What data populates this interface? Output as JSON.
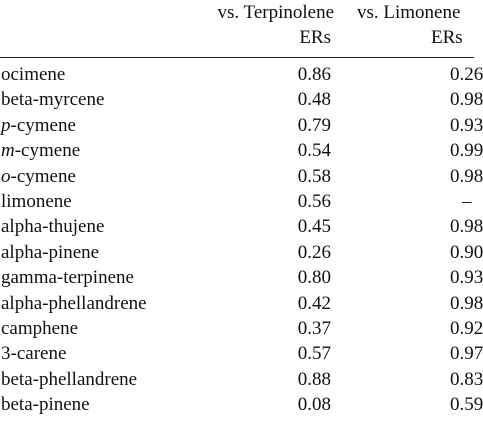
{
  "header": {
    "col1_line1": "vs. Terpinolene",
    "col1_line2": "ERs",
    "col2_line1": "vs. Limonene",
    "col2_line2": "ERs"
  },
  "rows": [
    {
      "prefix": "",
      "name": "ocimene",
      "terpinolene": "0.86",
      "limonene": "0.26"
    },
    {
      "prefix": "",
      "name": "beta-myrcene",
      "terpinolene": "0.48",
      "limonene": "0.98"
    },
    {
      "prefix": "p",
      "name": "-cymene",
      "terpinolene": "0.79",
      "limonene": "0.93"
    },
    {
      "prefix": "m",
      "name": "-cymene",
      "terpinolene": "0.54",
      "limonene": "0.99"
    },
    {
      "prefix": "o",
      "name": "-cymene",
      "terpinolene": "0.58",
      "limonene": "0.98"
    },
    {
      "prefix": "",
      "name": "limonene",
      "terpinolene": "0.56",
      "limonene": "–"
    },
    {
      "prefix": "",
      "name": "alpha-thujene",
      "terpinolene": "0.45",
      "limonene": "0.98"
    },
    {
      "prefix": "",
      "name": "alpha-pinene",
      "terpinolene": "0.26",
      "limonene": "0.90"
    },
    {
      "prefix": "",
      "name": "gamma-terpinene",
      "terpinolene": "0.80",
      "limonene": "0.93"
    },
    {
      "prefix": "",
      "name": "alpha-phellandrene",
      "terpinolene": "0.42",
      "limonene": "0.98"
    },
    {
      "prefix": "",
      "name": "camphene",
      "terpinolene": "0.37",
      "limonene": "0.92"
    },
    {
      "prefix": "",
      "name": "3-carene",
      "terpinolene": "0.57",
      "limonene": "0.97"
    },
    {
      "prefix": "",
      "name": "beta-phellandrene",
      "terpinolene": "0.88",
      "limonene": "0.83"
    },
    {
      "prefix": "",
      "name": "beta-pinene",
      "terpinolene": "0.08",
      "limonene": "0.59"
    }
  ]
}
